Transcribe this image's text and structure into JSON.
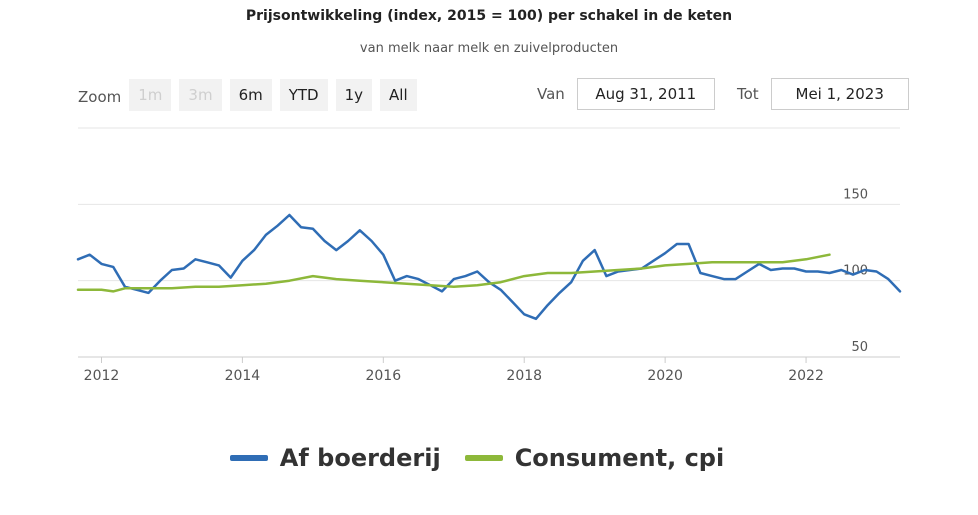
{
  "header": {
    "title": "Prijsontwikkeling (index, 2015 = 100) per schakel in de keten",
    "subtitle": "van melk naar melk en zuivelproducten"
  },
  "zoom": {
    "label": "Zoom",
    "buttons": [
      {
        "label": "1m",
        "enabled": false
      },
      {
        "label": "3m",
        "enabled": false
      },
      {
        "label": "6m",
        "enabled": true
      },
      {
        "label": "YTD",
        "enabled": true
      },
      {
        "label": "1y",
        "enabled": true
      },
      {
        "label": "All",
        "enabled": true
      }
    ]
  },
  "range": {
    "from_label": "Van",
    "from_value": "Aug 31, 2011",
    "to_label": "Tot",
    "to_value": "Mei 1, 2023"
  },
  "colors": {
    "farm": "#2f6db5",
    "consumer": "#8db83a",
    "grid": "#e6e6e6",
    "axis": "#cccccc"
  },
  "chart_data": {
    "type": "line",
    "title": "Prijsontwikkeling (index, 2015 = 100) per schakel in de keten",
    "subtitle": "van melk naar melk en zuivelproducten",
    "xlabel": "",
    "ylabel": "",
    "x_range": [
      "2011-09",
      "2023-05"
    ],
    "ylim": [
      50,
      200
    ],
    "y_ticks": [
      50,
      100,
      150
    ],
    "x_ticks": [
      "2012",
      "2014",
      "2016",
      "2018",
      "2020",
      "2022"
    ],
    "grid": true,
    "legend_position": "bottom",
    "series": [
      {
        "name": "Af boerderij",
        "color": "#2f6db5",
        "points": [
          [
            "2011-09",
            114
          ],
          [
            "2011-11",
            117
          ],
          [
            "2012-01",
            111
          ],
          [
            "2012-03",
            109
          ],
          [
            "2012-05",
            96
          ],
          [
            "2012-07",
            94
          ],
          [
            "2012-09",
            92
          ],
          [
            "2012-11",
            100
          ],
          [
            "2013-01",
            107
          ],
          [
            "2013-03",
            108
          ],
          [
            "2013-05",
            114
          ],
          [
            "2013-07",
            112
          ],
          [
            "2013-09",
            110
          ],
          [
            "2013-11",
            102
          ],
          [
            "2014-01",
            113
          ],
          [
            "2014-03",
            120
          ],
          [
            "2014-05",
            130
          ],
          [
            "2014-07",
            136
          ],
          [
            "2014-09",
            143
          ],
          [
            "2014-11",
            135
          ],
          [
            "2015-01",
            134
          ],
          [
            "2015-03",
            126
          ],
          [
            "2015-05",
            120
          ],
          [
            "2015-07",
            126
          ],
          [
            "2015-09",
            133
          ],
          [
            "2015-11",
            126
          ],
          [
            "2016-01",
            117
          ],
          [
            "2016-03",
            100
          ],
          [
            "2016-05",
            103
          ],
          [
            "2016-07",
            101
          ],
          [
            "2016-09",
            97
          ],
          [
            "2016-11",
            93
          ],
          [
            "2017-01",
            101
          ],
          [
            "2017-03",
            103
          ],
          [
            "2017-05",
            106
          ],
          [
            "2017-07",
            99
          ],
          [
            "2017-09",
            94
          ],
          [
            "2017-11",
            86
          ],
          [
            "2018-01",
            78
          ],
          [
            "2018-03",
            75
          ],
          [
            "2018-05",
            84
          ],
          [
            "2018-07",
            92
          ],
          [
            "2018-09",
            99
          ],
          [
            "2018-11",
            113
          ],
          [
            "2019-01",
            120
          ],
          [
            "2019-03",
            103
          ],
          [
            "2019-05",
            106
          ],
          [
            "2019-07",
            107
          ],
          [
            "2019-09",
            108
          ],
          [
            "2019-11",
            113
          ],
          [
            "2020-01",
            118
          ],
          [
            "2020-03",
            124
          ],
          [
            "2020-05",
            124
          ],
          [
            "2020-07",
            105
          ],
          [
            "2020-09",
            103
          ],
          [
            "2020-11",
            101
          ],
          [
            "2021-01",
            101
          ],
          [
            "2021-03",
            106
          ],
          [
            "2021-05",
            111
          ],
          [
            "2021-07",
            107
          ],
          [
            "2021-09",
            108
          ],
          [
            "2021-11",
            108
          ],
          [
            "2022-01",
            106
          ],
          [
            "2022-03",
            106
          ],
          [
            "2022-05",
            105
          ],
          [
            "2022-07",
            107
          ],
          [
            "2022-09",
            104
          ],
          [
            "2022-11",
            107
          ],
          [
            "2023-01",
            106
          ],
          [
            "2023-03",
            101
          ],
          [
            "2023-05",
            93
          ]
        ]
      },
      {
        "name": "Consument, cpi",
        "color": "#8db83a",
        "points": [
          [
            "2011-09",
            94
          ],
          [
            "2012-01",
            94
          ],
          [
            "2012-03",
            93
          ],
          [
            "2012-05",
            95
          ],
          [
            "2012-09",
            95
          ],
          [
            "2013-01",
            95
          ],
          [
            "2013-05",
            96
          ],
          [
            "2013-09",
            96
          ],
          [
            "2014-01",
            97
          ],
          [
            "2014-05",
            98
          ],
          [
            "2014-09",
            100
          ],
          [
            "2015-01",
            103
          ],
          [
            "2015-05",
            101
          ],
          [
            "2015-09",
            100
          ],
          [
            "2016-01",
            99
          ],
          [
            "2016-05",
            98
          ],
          [
            "2016-09",
            97
          ],
          [
            "2017-01",
            96
          ],
          [
            "2017-05",
            97
          ],
          [
            "2017-09",
            99
          ],
          [
            "2018-01",
            103
          ],
          [
            "2018-05",
            105
          ],
          [
            "2018-09",
            105
          ],
          [
            "2019-01",
            106
          ],
          [
            "2019-05",
            107
          ],
          [
            "2019-09",
            108
          ],
          [
            "2020-01",
            110
          ],
          [
            "2020-05",
            111
          ],
          [
            "2020-09",
            112
          ],
          [
            "2021-01",
            112
          ],
          [
            "2021-05",
            112
          ],
          [
            "2021-09",
            112
          ],
          [
            "2022-01",
            114
          ],
          [
            "2022-05",
            117
          ]
        ]
      }
    ]
  },
  "legend": {
    "items": [
      {
        "label": "Af boerderij"
      },
      {
        "label": "Consument, cpi"
      }
    ]
  }
}
